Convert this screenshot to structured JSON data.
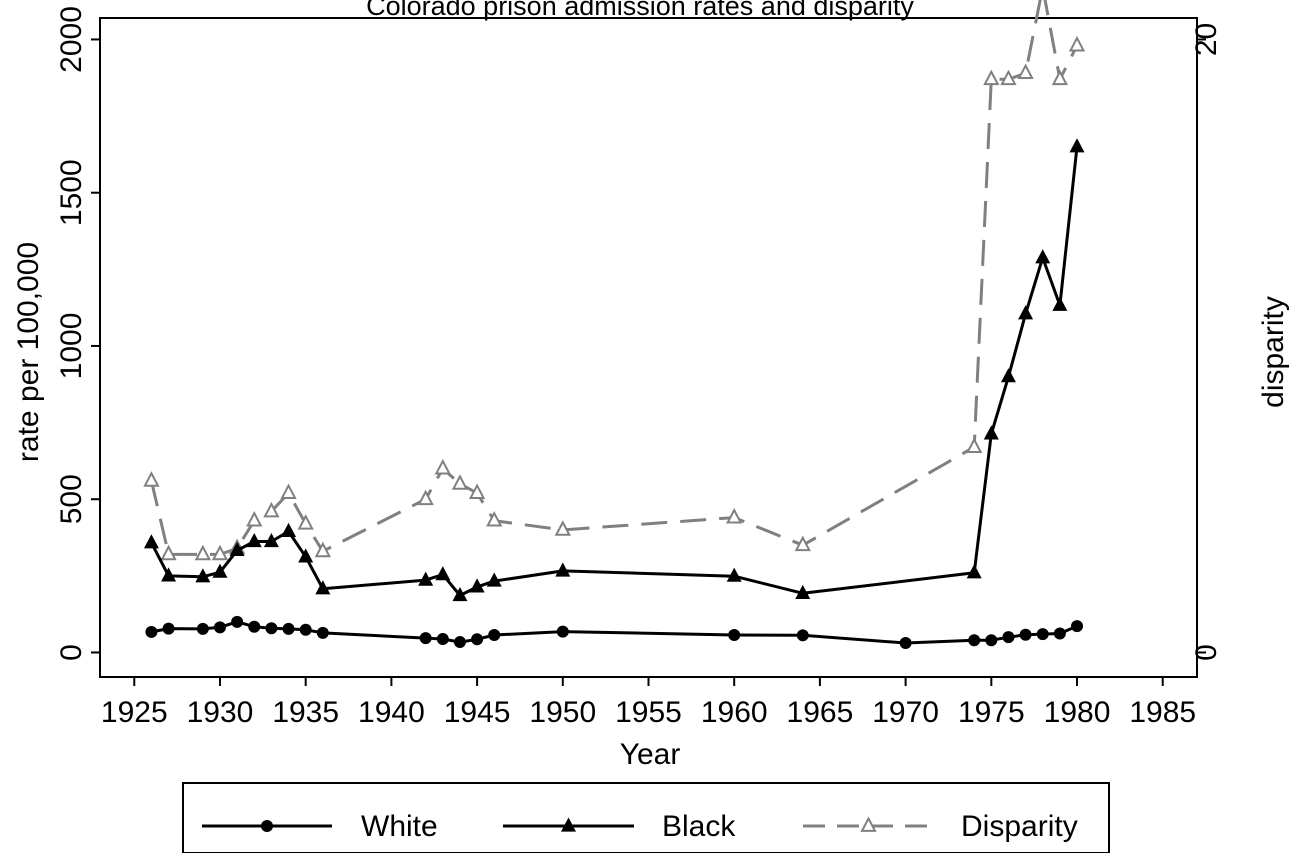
{
  "chart_data": {
    "type": "line",
    "title": "Colorado prison admission rates and disparity",
    "xlabel": "Year",
    "ylabel": "rate per 100,000",
    "y2label": "disparity",
    "xlim": [
      1923,
      1987
    ],
    "ylim": [
      -80,
      2070
    ],
    "y2lim": [
      -0.8,
      20.7
    ],
    "x_ticks": [
      1925,
      1930,
      1935,
      1940,
      1945,
      1950,
      1955,
      1960,
      1965,
      1970,
      1975,
      1980,
      1985
    ],
    "y_ticks": [
      0,
      500,
      1000,
      1500,
      2000
    ],
    "y2_ticks": [
      0,
      20
    ],
    "legend_position": "bottom",
    "grid": false,
    "series": [
      {
        "name": "White",
        "axis": "left",
        "color": "#000000",
        "dash": "solid",
        "marker": "circle",
        "points": [
          [
            1926,
            67
          ],
          [
            1927,
            78
          ],
          [
            1929,
            77
          ],
          [
            1930,
            82
          ],
          [
            1931,
            100
          ],
          [
            1932,
            84
          ],
          [
            1933,
            79
          ],
          [
            1934,
            77
          ],
          [
            1935,
            74
          ],
          [
            1936,
            64
          ],
          [
            1942,
            47
          ],
          [
            1943,
            44
          ],
          [
            1944,
            34
          ],
          [
            1945,
            43
          ],
          [
            1946,
            57
          ],
          [
            1950,
            68
          ],
          [
            1960,
            57
          ],
          [
            1964,
            56
          ],
          [
            1970,
            31
          ],
          [
            1974,
            40
          ],
          [
            1975,
            40
          ],
          [
            1976,
            50
          ],
          [
            1977,
            58
          ],
          [
            1978,
            60
          ],
          [
            1979,
            62
          ],
          [
            1980,
            86
          ]
        ]
      },
      {
        "name": "Black",
        "axis": "left",
        "color": "#000000",
        "dash": "solid",
        "marker": "triangle",
        "points": [
          [
            1926,
            358
          ],
          [
            1927,
            250
          ],
          [
            1929,
            247
          ],
          [
            1930,
            262
          ],
          [
            1931,
            333
          ],
          [
            1932,
            362
          ],
          [
            1933,
            362
          ],
          [
            1934,
            395
          ],
          [
            1935,
            312
          ],
          [
            1936,
            208
          ],
          [
            1942,
            236
          ],
          [
            1943,
            254
          ],
          [
            1944,
            186
          ],
          [
            1945,
            214
          ],
          [
            1946,
            233
          ],
          [
            1950,
            266
          ],
          [
            1960,
            249
          ],
          [
            1964,
            193
          ],
          [
            1974,
            260
          ],
          [
            1975,
            713
          ],
          [
            1976,
            900
          ],
          [
            1977,
            1105
          ],
          [
            1978,
            1288
          ],
          [
            1979,
            1133
          ],
          [
            1980,
            1650
          ]
        ]
      },
      {
        "name": "Disparity",
        "axis": "right",
        "color": "#808080",
        "dash": "long-dash",
        "marker": "hollow-triangle",
        "points": [
          [
            1926,
            5.6
          ],
          [
            1927,
            3.2
          ],
          [
            1929,
            3.2
          ],
          [
            1930,
            3.2
          ],
          [
            1931,
            3.4
          ],
          [
            1932,
            4.3
          ],
          [
            1933,
            4.6
          ],
          [
            1934,
            5.2
          ],
          [
            1935,
            4.2
          ],
          [
            1936,
            3.3
          ],
          [
            1942,
            5.0
          ],
          [
            1943,
            6.0
          ],
          [
            1944,
            5.5
          ],
          [
            1945,
            5.2
          ],
          [
            1946,
            4.3
          ],
          [
            1950,
            4.0
          ],
          [
            1960,
            4.4
          ],
          [
            1964,
            3.5
          ],
          [
            1974,
            6.7
          ],
          [
            1975,
            18.7
          ],
          [
            1976,
            18.7
          ],
          [
            1977,
            18.9
          ],
          [
            1978,
            21.7
          ],
          [
            1979,
            18.7
          ],
          [
            1980,
            19.8
          ]
        ]
      }
    ]
  }
}
